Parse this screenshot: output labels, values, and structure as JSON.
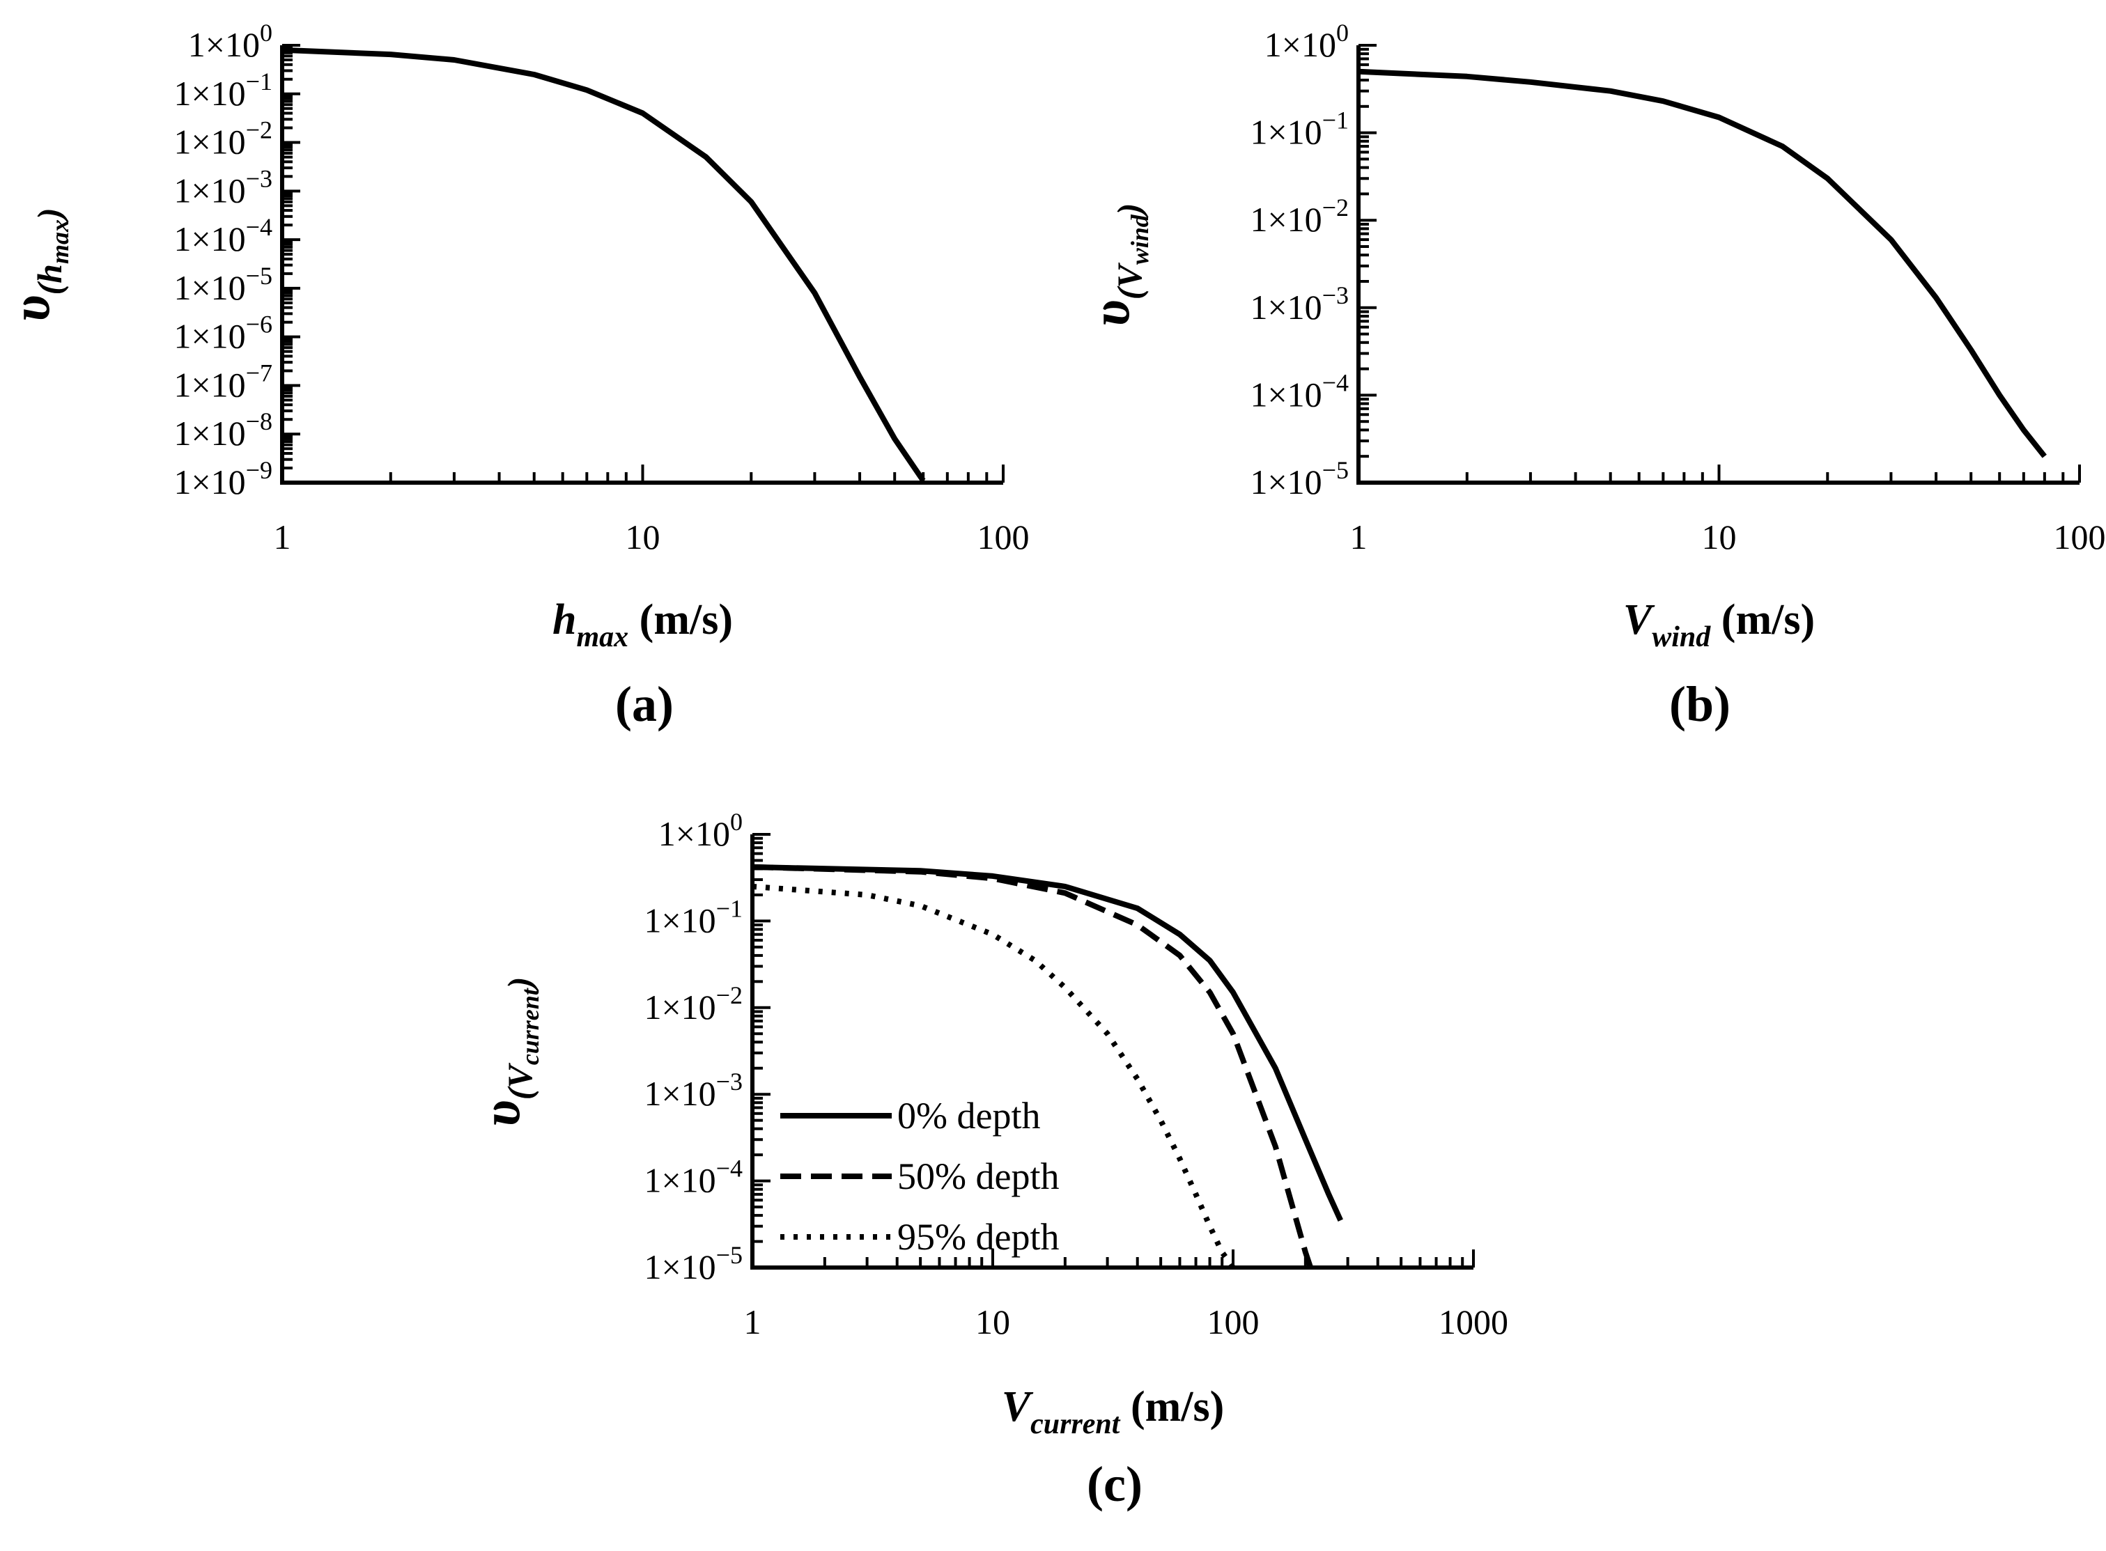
{
  "chart_data": [
    {
      "panel": "(a)",
      "type": "line",
      "x_scale": "log",
      "y_scale": "log",
      "xlim": [
        1,
        100
      ],
      "ylim": [
        1e-09,
        1
      ],
      "x_ticks": [
        "1",
        "10",
        "100"
      ],
      "y_ticks": [
        {
          "base": "1×10",
          "exp": "0"
        },
        {
          "base": "1×10",
          "exp": "−1"
        },
        {
          "base": "1×10",
          "exp": "−2"
        },
        {
          "base": "1×10",
          "exp": "−3"
        },
        {
          "base": "1×10",
          "exp": "−4"
        },
        {
          "base": "1×10",
          "exp": "−5"
        },
        {
          "base": "1×10",
          "exp": "−6"
        },
        {
          "base": "1×10",
          "exp": "−7"
        },
        {
          "base": "1×10",
          "exp": "−8"
        },
        {
          "base": "1×10",
          "exp": "−9"
        }
      ],
      "xlabel": {
        "main": "h",
        "sub": "max",
        "unit": " (m/s)"
      },
      "ylabel": {
        "main": "υ",
        "pre": "(h",
        "sub": "max",
        "post": ")"
      },
      "series": [
        {
          "style": "solid",
          "x": [
            1,
            2,
            3,
            5,
            7,
            10,
            15,
            20,
            30,
            40,
            50,
            60
          ],
          "y": [
            0.8,
            0.65,
            0.5,
            0.25,
            0.12,
            0.04,
            0.005,
            0.0006,
            8e-06,
            1.5e-07,
            8e-09,
            1.1e-09
          ]
        }
      ]
    },
    {
      "panel": "(b)",
      "type": "line",
      "x_scale": "log",
      "y_scale": "log",
      "xlim": [
        1,
        100
      ],
      "ylim": [
        1e-05,
        1
      ],
      "x_ticks": [
        "1",
        "10",
        "100"
      ],
      "y_ticks": [
        {
          "base": "1×10",
          "exp": "0"
        },
        {
          "base": "1×10",
          "exp": "−1"
        },
        {
          "base": "1×10",
          "exp": "−2"
        },
        {
          "base": "1×10",
          "exp": "−3"
        },
        {
          "base": "1×10",
          "exp": "−4"
        },
        {
          "base": "1×10",
          "exp": "−5"
        }
      ],
      "xlabel": {
        "main": "V",
        "sub": "wind",
        "unit": " (m/s)"
      },
      "ylabel": {
        "main": "υ",
        "pre": "(V",
        "sub": "wind",
        "post": ")"
      },
      "series": [
        {
          "style": "solid",
          "x": [
            1,
            2,
            3,
            5,
            7,
            10,
            15,
            20,
            30,
            40,
            50,
            60,
            70,
            80
          ],
          "y": [
            0.5,
            0.44,
            0.38,
            0.3,
            0.23,
            0.15,
            0.07,
            0.03,
            0.006,
            0.0013,
            0.00033,
            0.0001,
            4e-05,
            2e-05
          ]
        }
      ]
    },
    {
      "panel": "(c)",
      "type": "line",
      "x_scale": "log",
      "y_scale": "log",
      "xlim": [
        1,
        1000
      ],
      "ylim": [
        1e-05,
        1
      ],
      "x_ticks": [
        "1",
        "10",
        "100",
        "1000"
      ],
      "y_ticks": [
        {
          "base": "1×10",
          "exp": "0"
        },
        {
          "base": "1×10",
          "exp": "−1"
        },
        {
          "base": "1×10",
          "exp": "−2"
        },
        {
          "base": "1×10",
          "exp": "−3"
        },
        {
          "base": "1×10",
          "exp": "−4"
        },
        {
          "base": "1×10",
          "exp": "−5"
        }
      ],
      "xlabel": {
        "main": "V",
        "sub": "current",
        "unit": " (m/s)"
      },
      "ylabel": {
        "main": "υ",
        "pre": "(V",
        "sub": "current",
        "post": ")"
      },
      "legend_placement": "lower-left",
      "series": [
        {
          "name": "0% depth",
          "style": "solid",
          "x": [
            1,
            5,
            10,
            20,
            40,
            60,
            80,
            100,
            150,
            200,
            250,
            280
          ],
          "y": [
            0.42,
            0.38,
            0.33,
            0.25,
            0.14,
            0.07,
            0.035,
            0.015,
            0.002,
            0.0003,
            7e-05,
            3.5e-05
          ]
        },
        {
          "name": "50% depth",
          "style": "dashed",
          "x": [
            1,
            5,
            10,
            20,
            40,
            60,
            80,
            100,
            150,
            200,
            210
          ],
          "y": [
            0.42,
            0.37,
            0.31,
            0.21,
            0.09,
            0.04,
            0.015,
            0.005,
            0.00025,
            1.5e-05,
            1e-05
          ]
        },
        {
          "name": "95% depth",
          "style": "dotted",
          "x": [
            1,
            3,
            5,
            10,
            15,
            20,
            30,
            40,
            50,
            60,
            70,
            80,
            90,
            100
          ],
          "y": [
            0.25,
            0.2,
            0.15,
            0.07,
            0.035,
            0.017,
            0.005,
            0.0015,
            0.0005,
            0.00018,
            7e-05,
            3e-05,
            1.5e-05,
            1e-05
          ]
        }
      ]
    }
  ]
}
